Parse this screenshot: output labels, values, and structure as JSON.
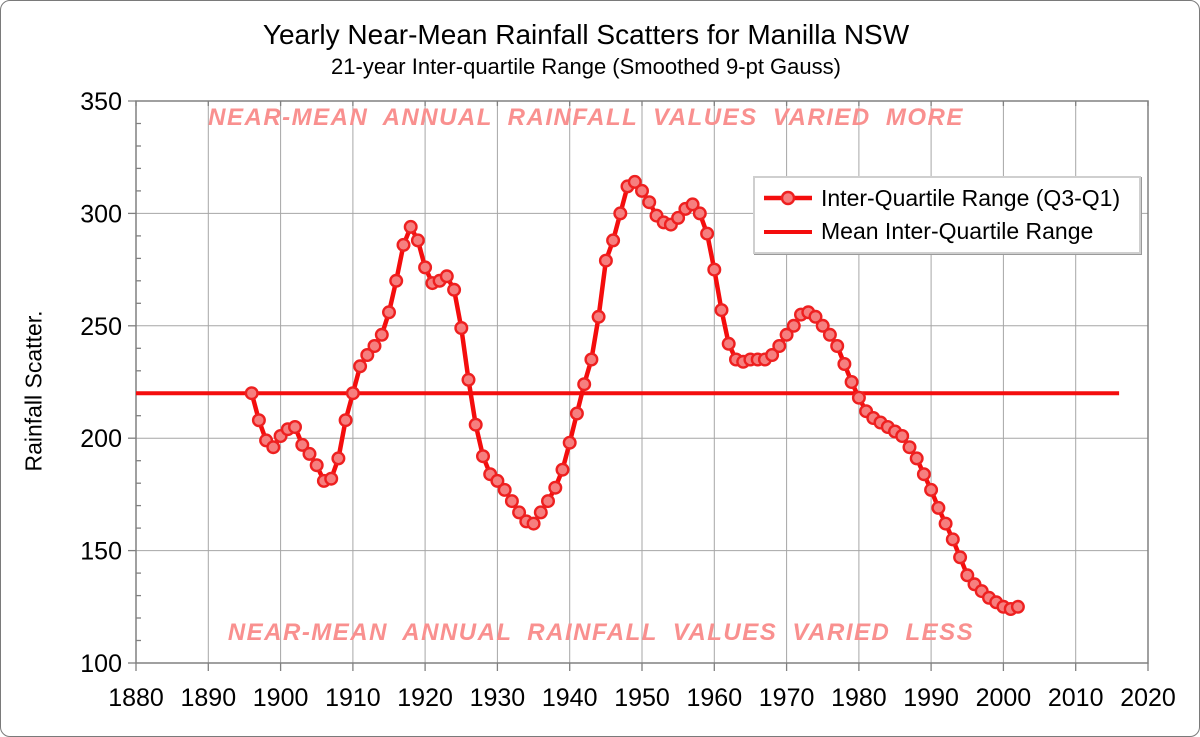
{
  "chart_data": {
    "type": "line",
    "title": "Yearly Near-Mean Rainfall Scatters for Manilla NSW",
    "subtitle": "21-year Inter-quartile Range (Smoothed 9-pt Gauss)",
    "xlabel": "",
    "ylabel": "Rainfall Scatter.",
    "xlim": [
      1880,
      2020
    ],
    "ylim": [
      100,
      350
    ],
    "x_ticks": [
      1880,
      1890,
      1900,
      1910,
      1920,
      1930,
      1940,
      1950,
      1960,
      1970,
      1980,
      1990,
      2000,
      2010,
      2020
    ],
    "y_ticks": [
      100,
      150,
      200,
      250,
      300,
      350
    ],
    "y_minor_step": 10,
    "grid": true,
    "legend_position": "top-right",
    "annotations": {
      "top": "NEAR-MEAN ANNUAL RAINFALL VALUES VARIED MORE",
      "bottom": "NEAR-MEAN ANNUAL RAINFALL VALUES VARIED LESS"
    },
    "series": [
      {
        "name": "Inter-Quartile Range (Q3-Q1)",
        "type": "line-markers",
        "x_start": 1896,
        "x_step": 1,
        "x_end": 2002,
        "values": [
          220,
          208,
          199,
          196,
          201,
          204,
          205,
          197,
          193,
          188,
          181,
          182,
          191,
          208,
          220,
          232,
          237,
          241,
          246,
          256,
          270,
          286,
          294,
          288,
          276,
          269,
          270,
          272,
          266,
          249,
          226,
          206,
          192,
          184,
          181,
          177,
          172,
          167,
          163,
          162,
          167,
          172,
          178,
          186,
          198,
          211,
          224,
          235,
          254,
          279,
          288,
          300,
          312,
          314,
          310,
          305,
          299,
          296,
          295,
          298,
          302,
          304,
          300,
          291,
          275,
          257,
          242,
          235,
          234,
          235,
          235,
          235,
          237,
          241,
          246,
          250,
          255,
          256,
          254,
          250,
          246,
          241,
          233,
          225,
          218,
          212,
          209,
          207,
          205,
          203,
          201,
          196,
          191,
          184,
          177,
          169,
          162,
          155,
          147,
          139,
          135,
          132,
          129,
          127,
          125,
          124,
          125
        ]
      },
      {
        "name": "Mean Inter-Quartile Range",
        "type": "hline",
        "value": 220,
        "x_start": 1880,
        "x_end": 2016
      }
    ],
    "colors": {
      "series_line": "#f40d0d",
      "marker_fill": "#f67f7f",
      "marker_edge": "#ee2020",
      "mean_line": "#f40d0d",
      "annotation": "#f9908f",
      "grid": "#a6a6a6",
      "frame": "#808080",
      "text": "#000000"
    }
  }
}
